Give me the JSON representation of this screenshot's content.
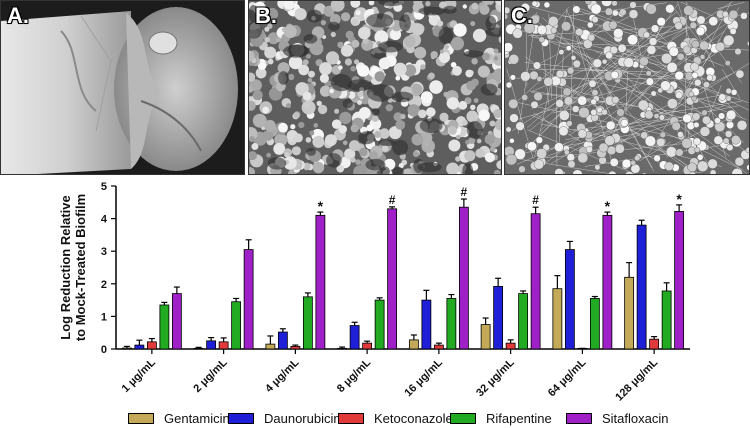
{
  "panels": {
    "a": {
      "label": "A."
    },
    "b": {
      "label": "B."
    },
    "c": {
      "label": "C."
    }
  },
  "chart_data": {
    "type": "bar",
    "title": "",
    "xlabel": "",
    "ylabel": "Log Reduction Relative to Mock-Treated Biofilm",
    "ylabel_lines": [
      "Log Reduction Relative",
      "to Mock-Treated Biofilm"
    ],
    "ylim": [
      0,
      5
    ],
    "yticks": [
      "0",
      "1",
      "2",
      "3",
      "4",
      "5"
    ],
    "grid": false,
    "legend_position": "bottom",
    "categories": [
      "1 μg/mL",
      "2 μg/mL",
      "4 μg/mL",
      "8 μg/mL",
      "16 μg/mL",
      "32 μg/mL",
      "64 μg/mL",
      "128 μg/mL"
    ],
    "annotations": [
      "",
      "",
      "*",
      "#",
      "#",
      "#",
      "*",
      "*"
    ],
    "series": [
      {
        "name": "Gentamicin",
        "color": "#c4aa58",
        "values": [
          0.03,
          0.02,
          0.15,
          0.02,
          0.28,
          0.75,
          1.85,
          2.2
        ],
        "errors": [
          0.05,
          0.03,
          0.25,
          0.04,
          0.15,
          0.2,
          0.4,
          0.45
        ]
      },
      {
        "name": "Daunorubicin",
        "color": "#1f1fd8",
        "values": [
          0.12,
          0.25,
          0.52,
          0.72,
          1.5,
          1.92,
          3.05,
          3.8
        ],
        "errors": [
          0.15,
          0.1,
          0.1,
          0.1,
          0.3,
          0.25,
          0.25,
          0.15
        ]
      },
      {
        "name": "Ketoconazole",
        "color": "#e03a3a",
        "values": [
          0.22,
          0.22,
          0.08,
          0.18,
          0.12,
          0.18,
          0.0,
          0.3
        ],
        "errors": [
          0.1,
          0.12,
          0.04,
          0.06,
          0.06,
          0.1,
          0.02,
          0.08
        ]
      },
      {
        "name": "Rifapentine",
        "color": "#22aa22",
        "values": [
          1.35,
          1.45,
          1.6,
          1.5,
          1.55,
          1.7,
          1.55,
          1.78
        ],
        "errors": [
          0.08,
          0.1,
          0.12,
          0.07,
          0.12,
          0.08,
          0.06,
          0.25
        ]
      },
      {
        "name": "Sitafloxacin",
        "color": "#a020c8",
        "values": [
          1.7,
          3.05,
          4.1,
          4.3,
          4.35,
          4.15,
          4.1,
          4.22
        ],
        "errors": [
          0.2,
          0.3,
          0.1,
          0.06,
          0.25,
          0.2,
          0.1,
          0.2
        ]
      }
    ]
  }
}
